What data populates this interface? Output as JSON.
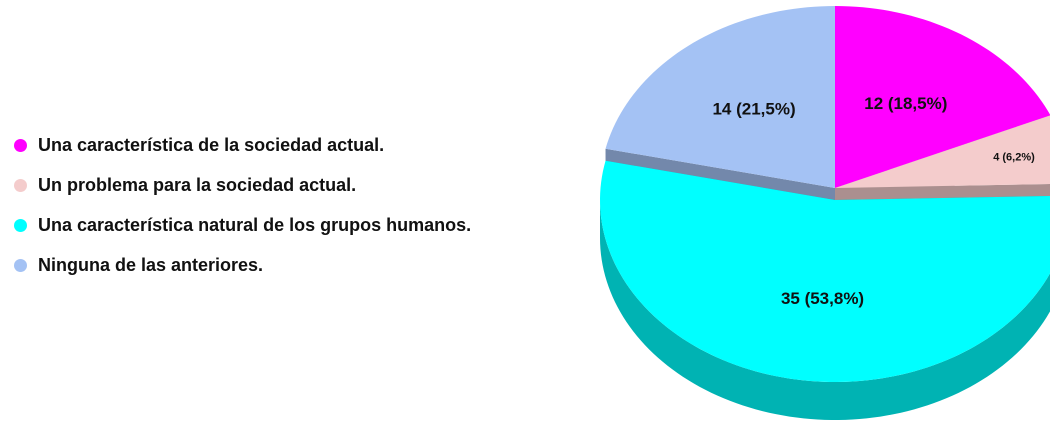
{
  "chart_data": {
    "type": "pie",
    "categories": [
      "Una característica de la sociedad actual.",
      "Un problema para la sociedad actual.",
      "Una característica natural de los grupos humanos.",
      "Ninguna de las anteriores."
    ],
    "values": [
      12,
      4,
      35,
      14
    ],
    "value_labels": [
      "12 (18,5%)",
      "4 (6,2%)",
      "35 (53,8%)",
      "14 (21,5%)"
    ],
    "colors": [
      "#ff00ff",
      "#f4cccc",
      "#00ffff",
      "#a4c2f4"
    ]
  }
}
